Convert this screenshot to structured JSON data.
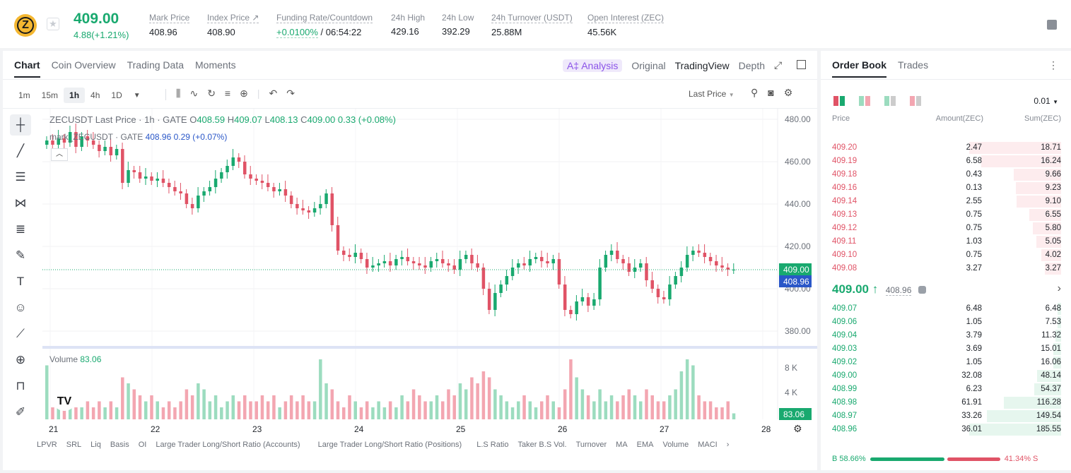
{
  "ticker": {
    "last_price": "409.00",
    "change": "4.88(+1.21%)",
    "stats": [
      {
        "label": "Mark Price",
        "value": "408.96"
      },
      {
        "label": "Index Price ↗",
        "value": "408.90"
      },
      {
        "label": "Funding Rate/Countdown",
        "value": "+0.0100%",
        "value2": "/ 06:54:22"
      },
      {
        "label": "24h High",
        "value": "429.16"
      },
      {
        "label": "24h Low",
        "value": "392.29"
      },
      {
        "label": "24h Turnover (USDT)",
        "value": "25.88M"
      },
      {
        "label": "Open Interest (ZEC)",
        "value": "45.56K"
      }
    ]
  },
  "chart_tabs": {
    "chart": "Chart",
    "overview": "Coin Overview",
    "trading_data": "Trading Data",
    "moments": "Moments",
    "ai": "A‡ Analysis",
    "original": "Original",
    "tradingview": "TradingView",
    "depth": "Depth"
  },
  "timeframes": [
    "1m",
    "15m",
    "1h",
    "4h",
    "1D"
  ],
  "selected_timeframe": "1h",
  "price_source": "Last Price",
  "legend": {
    "title": "ZECUSDT Last Price · 1h · GATE",
    "o": "O",
    "o_val": "408.59",
    "h": "H",
    "h_val": "409.07",
    "l": "L",
    "l_val": "408.13",
    "c": "C",
    "c_val": "409.00",
    "chg": "0.33 (+0.08%)",
    "mark_title": "mark_ZECUSDT · GATE",
    "mark_val": "408.96  0.29 (+0.07%)"
  },
  "volume_legend": {
    "label": "Volume",
    "value": "83.06"
  },
  "indicators": [
    "LPVR",
    "SRL",
    "Liq",
    "Basis",
    "OI",
    "Large Trader Long/Short Ratio (Accounts)",
    "Large Trader Long/Short Ratio (Positions)",
    "L.S Ratio",
    "Taker B.S Vol.",
    "Turnover",
    "MA",
    "EMA",
    "Volume",
    "MACI"
  ],
  "chart_data": {
    "type": "candlestick",
    "price_axis": [
      "480.00",
      "460.00",
      "440.00",
      "420.00",
      "400.00",
      "380.00"
    ],
    "price_labels": {
      "last": "409.00",
      "mark": "408.96"
    },
    "volume_axis": [
      "8 K",
      "4 K"
    ],
    "volume_label": "83.06",
    "x_ticks": [
      "21",
      "22",
      "23",
      "24",
      "25",
      "26",
      "27",
      "28"
    ],
    "ylim": [
      375,
      485
    ],
    "close_path": [
      470,
      468,
      471,
      469,
      474,
      467,
      472,
      470,
      468,
      465,
      467,
      463,
      466,
      450,
      456,
      455,
      452,
      453,
      451,
      452,
      450,
      448,
      446,
      445,
      440,
      438,
      444,
      446,
      448,
      452,
      455,
      458,
      462,
      460,
      454,
      452,
      451,
      450,
      448,
      446,
      447,
      444,
      440,
      438,
      437,
      436,
      438,
      440,
      445,
      430,
      418,
      416,
      415,
      417,
      414,
      410,
      411,
      412,
      413,
      411,
      414,
      415,
      413,
      412,
      411,
      410,
      413,
      414,
      412,
      411,
      409,
      414,
      416,
      412,
      410,
      400,
      390,
      398,
      402,
      406,
      410,
      412,
      411,
      414,
      415,
      413,
      412,
      414,
      402,
      390,
      388,
      394,
      396,
      392,
      395,
      410,
      416,
      418,
      414,
      412,
      408,
      410,
      412,
      404,
      400,
      396,
      395,
      402,
      406,
      410,
      416,
      418,
      417,
      415,
      413,
      411,
      410,
      409,
      409
    ],
    "volume_values": [
      9,
      2,
      3,
      2,
      3,
      2,
      2,
      3,
      2,
      3,
      2,
      3,
      2,
      7,
      6,
      5,
      4,
      3,
      4,
      3,
      2,
      3,
      2,
      3,
      5,
      4,
      6,
      5,
      3,
      4,
      2,
      3,
      4,
      3,
      4,
      3,
      3,
      4,
      3,
      4,
      2,
      3,
      4,
      3,
      4,
      3,
      3,
      10,
      6,
      5,
      3,
      2,
      4,
      3,
      2,
      3,
      2,
      3,
      2,
      3,
      2,
      4,
      3,
      5,
      4,
      3,
      3,
      4,
      3,
      5,
      4,
      6,
      5,
      7,
      6,
      8,
      7,
      5,
      4,
      3,
      2,
      3,
      4,
      3,
      2,
      3,
      4,
      3,
      2,
      5,
      10,
      7,
      5,
      4,
      3,
      5,
      3,
      4,
      3,
      4,
      5,
      4,
      3,
      5,
      4,
      3,
      3,
      4,
      5,
      8,
      10,
      9,
      4,
      3,
      3,
      2,
      2,
      3,
      1
    ]
  },
  "order_book": {
    "tabs": [
      "Order Book",
      "Trades"
    ],
    "precision": "0.01",
    "headers": {
      "price": "Price",
      "amount": "Amount(ZEC)",
      "sum": "Sum(ZEC)"
    },
    "asks": [
      {
        "price": "409.20",
        "amount": "2.47",
        "sum": "18.71",
        "depth": 1.0
      },
      {
        "price": "409.19",
        "amount": "6.58",
        "sum": "16.24",
        "depth": 0.868
      },
      {
        "price": "409.18",
        "amount": "0.43",
        "sum": "9.66",
        "depth": 0.516
      },
      {
        "price": "409.16",
        "amount": "0.13",
        "sum": "9.23",
        "depth": 0.493
      },
      {
        "price": "409.14",
        "amount": "2.55",
        "sum": "9.10",
        "depth": 0.486
      },
      {
        "price": "409.13",
        "amount": "0.75",
        "sum": "6.55",
        "depth": 0.35
      },
      {
        "price": "409.12",
        "amount": "0.75",
        "sum": "5.80",
        "depth": 0.31
      },
      {
        "price": "409.11",
        "amount": "1.03",
        "sum": "5.05",
        "depth": 0.27
      },
      {
        "price": "409.10",
        "amount": "0.75",
        "sum": "4.02",
        "depth": 0.215
      },
      {
        "price": "409.08",
        "amount": "3.27",
        "sum": "3.27",
        "depth": 0.175
      }
    ],
    "last_price": "409.00 ↑",
    "mark_price": "408.96",
    "bids": [
      {
        "price": "409.07",
        "amount": "6.48",
        "sum": "6.48",
        "depth": 0.035
      },
      {
        "price": "409.06",
        "amount": "1.05",
        "sum": "7.53",
        "depth": 0.04
      },
      {
        "price": "409.04",
        "amount": "3.79",
        "sum": "11.32",
        "depth": 0.061
      },
      {
        "price": "409.03",
        "amount": "3.69",
        "sum": "15.01",
        "depth": 0.081
      },
      {
        "price": "409.02",
        "amount": "1.05",
        "sum": "16.06",
        "depth": 0.087
      },
      {
        "price": "409.00",
        "amount": "32.08",
        "sum": "48.14",
        "depth": 0.26
      },
      {
        "price": "408.99",
        "amount": "6.23",
        "sum": "54.37",
        "depth": 0.293
      },
      {
        "price": "408.98",
        "amount": "61.91",
        "sum": "116.28",
        "depth": 0.627
      },
      {
        "price": "408.97",
        "amount": "33.26",
        "sum": "149.54",
        "depth": 0.806
      },
      {
        "price": "408.96",
        "amount": "36.01",
        "sum": "185.55",
        "depth": 1.0
      }
    ],
    "buy_ratio_label": "B 58.66%",
    "sell_ratio_label": "41.34% S",
    "buy_ratio": 58.66
  },
  "colors": {
    "up": "#19a96f",
    "down": "#e05366",
    "accent": "#8b54e8",
    "mark": "#2a57c8"
  }
}
